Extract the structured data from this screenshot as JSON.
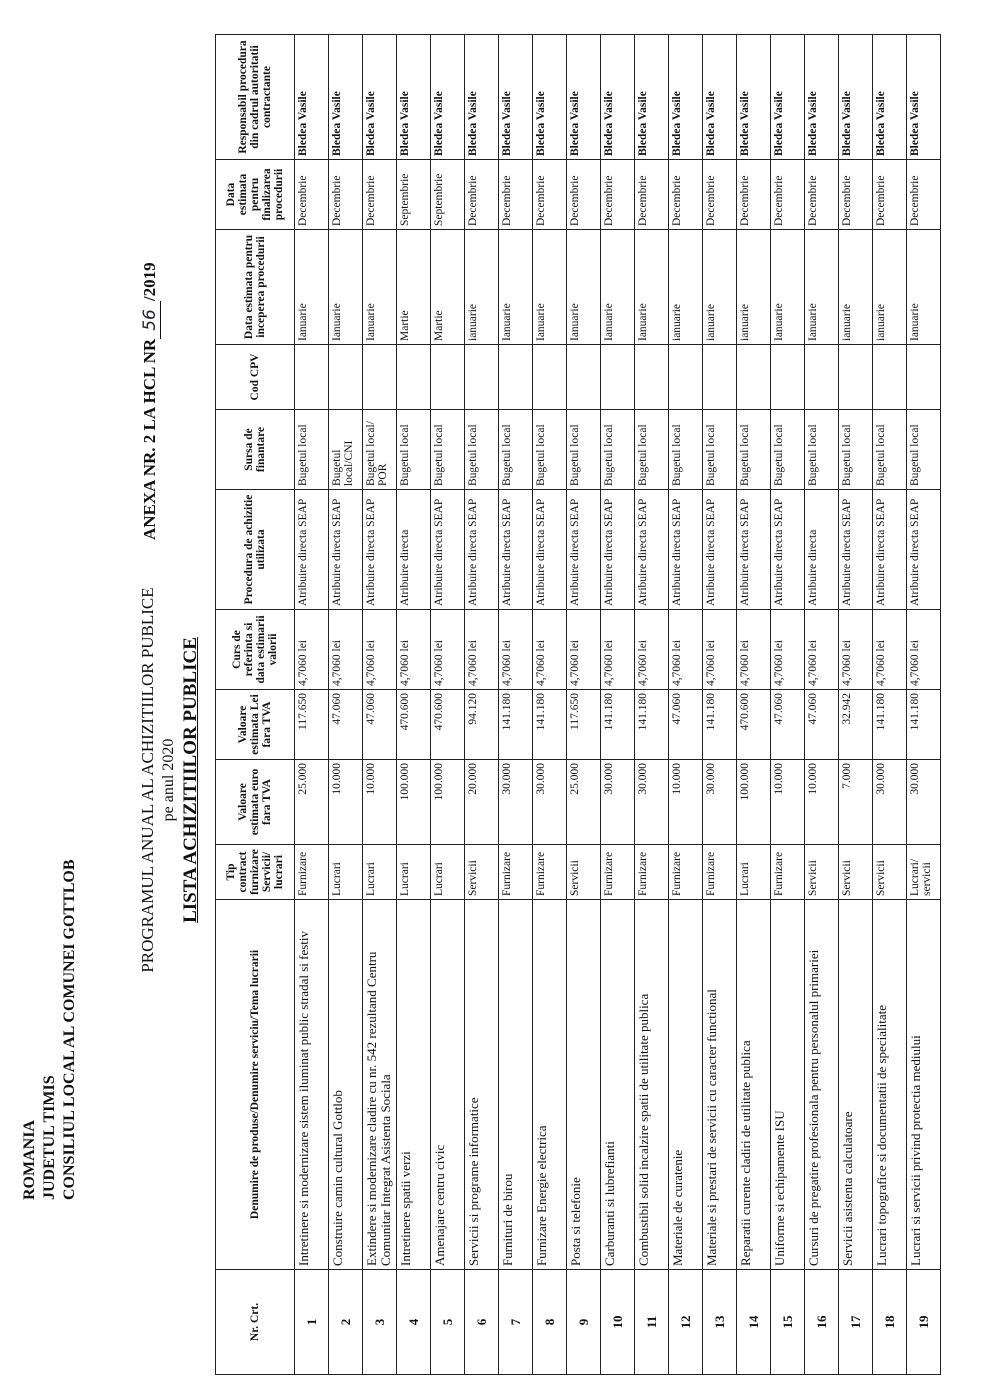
{
  "header": {
    "country": "ROMANIA",
    "county": "JUDETUL TIMIS",
    "council": "CONSILIUL LOCAL AL COMUNEI GOTTLOB"
  },
  "annex": {
    "prefix": "ANEXA NR. 2 LA HCL NR",
    "number": "56",
    "suffix": "/2019"
  },
  "title": "PROGRAMUL ANUAL AL ACHIZITIILOR PUBLICE",
  "subtitle": "pe anul 2020",
  "list_title": "LISTA ACHIZITIILOR PUBLICE",
  "table": {
    "columns": [
      "Nr. Crt.",
      "Denumire de produse/Denumire serviciu/Tema lucrarii",
      "Tip contract furnizare Servicii/ lucrari",
      "Valoare estimata euro fara TVA",
      "Valoare estimata Lei fara TVA",
      "Curs de referinta si data estimarii valorii",
      "Procedura de achizitie utilizata",
      "Sursa de finantare",
      "Cod CPV",
      "Data estimata pentru inceperea procedurii",
      "Data estimata pentru finalizarea procedurii",
      "Responsabil procedura din cadrul autoritatii contractante"
    ],
    "rows": [
      {
        "nr": "1",
        "name": "Intretinere si modernizare sistem iluminat public stradal si festiv",
        "type": "Furnizare",
        "eur": "25.000",
        "lei": "117.650",
        "rate": "4,7060 lei",
        "procedure": "Atribuire directa SEAP",
        "source": "Bugetul local",
        "start": "Ianuarie",
        "end": "Decembrie",
        "responsible": "Bledea Vasile"
      },
      {
        "nr": "2",
        "name": "Construire camin cultural Gottlob",
        "type": "Lucrari",
        "eur": "10.000",
        "lei": "47.060",
        "rate": "4,7060 lei",
        "procedure": "Atribuire directa SEAP",
        "source": "Bugetul local/CNI",
        "start": "Ianuarie",
        "end": "Decembrie",
        "responsible": "Bledea Vasile"
      },
      {
        "nr": "3",
        "name": "Extindere si modernizare cladire cu nr. 542 rezultand Centru Comunitar Integrat Asistenta Sociala",
        "type": "Lucrari",
        "eur": "10.000",
        "lei": "47.060",
        "rate": "4,7060 lei",
        "procedure": "Atribuire directa SEAP",
        "source": "Bugetul local/ POR",
        "start": "Ianuarie",
        "end": "Decembrie",
        "responsible": "Bledea Vasile"
      },
      {
        "nr": "4",
        "name": "Intretinere spatii verzi",
        "type": "Lucrari",
        "eur": "100.000",
        "lei": "470.600",
        "rate": "4,7060 lei",
        "procedure": "Atribuire directa",
        "source": "Bugetul local",
        "start": "Martie",
        "end": "Septembrie",
        "responsible": "Bledea Vasile"
      },
      {
        "nr": "5",
        "name": "Amenajare centru civic",
        "type": "Lucrari",
        "eur": "100.000",
        "lei": "470.600",
        "rate": "4,7060 lei",
        "procedure": "Atribuire directa SEAP",
        "source": "Bugetul local",
        "start": "Martie",
        "end": "Septembrie",
        "responsible": "Bledea Vasile"
      },
      {
        "nr": "6",
        "name": "Servicii si programe informatice",
        "type": "Servicii",
        "eur": "20.000",
        "lei": "94.120",
        "rate": "4,7060 lei",
        "procedure": "Atribuire directa SEAP",
        "source": "Bugetul local",
        "start": "ianuarie",
        "end": "Decembrie",
        "responsible": "Bledea Vasile"
      },
      {
        "nr": "7",
        "name": "Furnituri de birou",
        "type": "Furnizare",
        "eur": "30.000",
        "lei": "141.180",
        "rate": "4,7060 lei",
        "procedure": "Atribuire directa SEAP",
        "source": "Bugetul local",
        "start": "Ianuarie",
        "end": "Decembrie",
        "responsible": "Bledea Vasile"
      },
      {
        "nr": "8",
        "name": "Furnizare Energie electrica",
        "type": "Furnizare",
        "eur": "30.000",
        "lei": "141.180",
        "rate": "4,7060 lei",
        "procedure": "Atribuire directa SEAP",
        "source": "Bugetul local",
        "start": "Ianuarie",
        "end": "Decembrie",
        "responsible": "Bledea Vasile"
      },
      {
        "nr": "9",
        "name": "Posta si telefonie",
        "type": "Servicii",
        "eur": "25.000",
        "lei": "117.650",
        "rate": "4,7060 lei",
        "procedure": "Atribuire directa SEAP",
        "source": "Bugetul local",
        "start": "Ianuarie",
        "end": "Decembrie",
        "responsible": "Bledea Vasile"
      },
      {
        "nr": "10",
        "name": "Carburanti si lubrefianti",
        "type": "Furnizare",
        "eur": "30.000",
        "lei": "141.180",
        "rate": "4,7060 lei",
        "procedure": "Atribuire directa SEAP",
        "source": "Bugetul local",
        "start": "Ianuarie",
        "end": "Decembrie",
        "responsible": "Bledea Vasile"
      },
      {
        "nr": "11",
        "name": "Combustibil solid incalzire spatii de utilitate publica",
        "type": "Furnizare",
        "eur": "30.000",
        "lei": "141.180",
        "rate": "4,7060 lei",
        "procedure": "Atribuire directa SEAP",
        "source": "Bugetul local",
        "start": "Ianuarie",
        "end": "Decembrie",
        "responsible": "Bledea Vasile"
      },
      {
        "nr": "12",
        "name": "Materiale de curatenie",
        "type": "Furnizare",
        "eur": "10.000",
        "lei": "47.060",
        "rate": "4,7060 lei",
        "procedure": "Atribuire directa SEAP",
        "source": "Bugetul local",
        "start": "ianuarie",
        "end": "Decembrie",
        "responsible": "Bledea Vasile"
      },
      {
        "nr": "13",
        "name": "Materiale si prestari de servicii cu caracter functional",
        "type": "Furnizare",
        "eur": "30.000",
        "lei": "141.180",
        "rate": "4,7060 lei",
        "procedure": "Atribuire directa SEAP",
        "source": "Bugetul local",
        "start": "ianuarie",
        "end": "Decembrie",
        "responsible": "Bledea Vasile"
      },
      {
        "nr": "14",
        "name": "Reparatii curente cladiri de utilitate publica",
        "type": "Lucrari",
        "eur": "100.000",
        "lei": "470.600",
        "rate": "4,7060 lei",
        "procedure": "Atribuire directa SEAP",
        "source": "Bugetul local",
        "start": "ianuarie",
        "end": "Decembrie",
        "responsible": "Bledea Vasile"
      },
      {
        "nr": "15",
        "name": "Uniforme si echipamente ISU",
        "type": "Furnizare",
        "eur": "10.000",
        "lei": "47.060",
        "rate": "4,7060 lei",
        "procedure": "Atribuire directa SEAP",
        "source": "Bugetul local",
        "start": "Ianuarie",
        "end": "Decembrie",
        "responsible": "Bledea Vasile"
      },
      {
        "nr": "16",
        "name": "Cursuri de pregatire profesionala pentru personalul primariei",
        "type": "Servicii",
        "eur": "10.000",
        "lei": "47.060",
        "rate": "4,7060 lei",
        "procedure": "Atribuire directa",
        "source": "Bugetul local",
        "start": "Ianuarie",
        "end": "Decembrie",
        "responsible": "Bledea Vasile"
      },
      {
        "nr": "17",
        "name": "Servicii asistenta calculatoare",
        "type": "Servicii",
        "eur": "7.000",
        "lei": "32.942",
        "rate": "4,7060 lei",
        "procedure": "Atribuire directa SEAP",
        "source": "Bugetul local",
        "start": "ianuarie",
        "end": "Decembrie",
        "responsible": "Bledea Vasile"
      },
      {
        "nr": "18",
        "name": "Lucrari topografice si documentatii de specialitate",
        "type": "Servicii",
        "eur": "30.000",
        "lei": "141.180",
        "rate": "4,7060 lei",
        "procedure": "Atribuire directa SEAP",
        "source": "Bugetul local",
        "start": "ianuarie",
        "end": "Decembrie",
        "responsible": "Bledea Vasile"
      },
      {
        "nr": "19",
        "name": "Lucrari si servicii privind protectia mediului",
        "type": "Lucrari/ servicii",
        "eur": "30.000",
        "lei": "141.180",
        "rate": "4,7060 lei",
        "procedure": "Atribuire directa SEAP",
        "source": "Bugetul local",
        "start": "Ianuarie",
        "end": "Decembrie",
        "responsible": "Bledea Vasile"
      }
    ]
  }
}
